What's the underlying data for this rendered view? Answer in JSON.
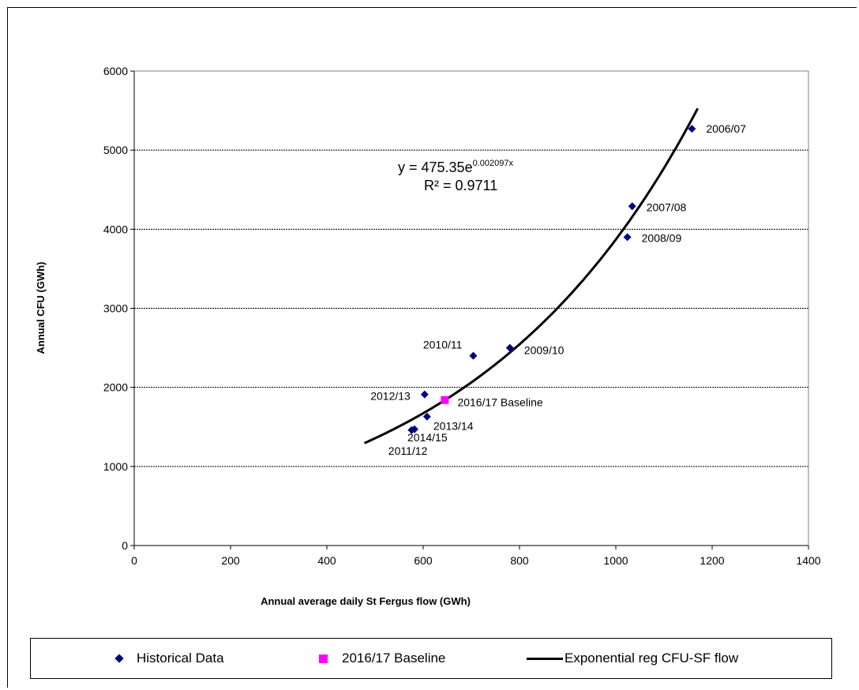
{
  "chart_data": {
    "type": "scatter",
    "xlabel": "Annual average daily St Fergus flow (GWh)",
    "ylabel": "Annual CFU (GWh)",
    "xlim": [
      0,
      1400
    ],
    "ylim": [
      0,
      6000
    ],
    "x_ticks": [
      "0",
      "200",
      "400",
      "600",
      "800",
      "1000",
      "1200",
      "1400"
    ],
    "y_ticks": [
      "0",
      "1000",
      "2000",
      "3000",
      "4000",
      "5000",
      "6000"
    ],
    "grid": "horizontal dashed",
    "legend_position": "bottom",
    "series": [
      {
        "name": "Historical Data",
        "marker": "diamond",
        "color": "#000080",
        "points": [
          {
            "x": 1158,
            "y": 5270,
            "label": "2006/07"
          },
          {
            "x": 1034,
            "y": 4290,
            "label": "2007/08"
          },
          {
            "x": 1024,
            "y": 3900,
            "label": "2008/09"
          },
          {
            "x": 780,
            "y": 2500,
            "label": "2009/10"
          },
          {
            "x": 704,
            "y": 2400,
            "label": "2010/11"
          },
          {
            "x": 576,
            "y": 1460,
            "label": "2011/12"
          },
          {
            "x": 603,
            "y": 1910,
            "label": "2012/13"
          },
          {
            "x": 608,
            "y": 1630,
            "label": "2013/14"
          },
          {
            "x": 582,
            "y": 1470,
            "label": "2014/15"
          }
        ]
      },
      {
        "name": "2016/17 Baseline",
        "marker": "square",
        "color": "#ff00ff",
        "points": [
          {
            "x": 645,
            "y": 1840,
            "label": "2016/17 Baseline"
          }
        ]
      },
      {
        "name": "Exponential reg CFU-SF flow",
        "type": "line",
        "color": "#000000",
        "a": 475.35,
        "b": 0.002097,
        "x_range": [
          478,
          1170
        ]
      }
    ],
    "equation": {
      "prefix": "y = 475.35e",
      "exponent": "0.002097x",
      "r2": "R² = 0.9711"
    }
  }
}
